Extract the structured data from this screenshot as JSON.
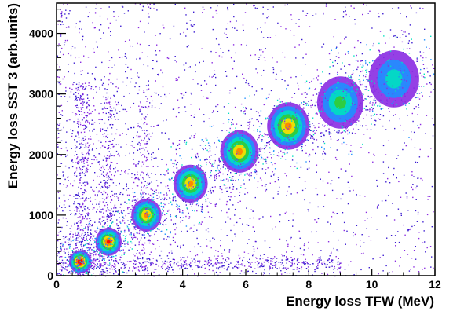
{
  "chart_data": {
    "type": "heatmap",
    "title": "",
    "xlabel": "Energy loss TFW (MeV)",
    "ylabel": "Energy loss SST 3 (arb.units)",
    "xlim": [
      0,
      12
    ],
    "ylim": [
      0,
      4500
    ],
    "x_ticks": [
      0,
      2,
      4,
      6,
      8,
      10,
      12
    ],
    "y_ticks": [
      0,
      1000,
      2000,
      3000,
      4000
    ],
    "colormap": [
      "#3b1bd1",
      "#8a2be2",
      "#1e90ff",
      "#00e0c0",
      "#33cc33",
      "#ffe000",
      "#ff8000",
      "#ff0000"
    ],
    "grid": false,
    "clusters": [
      {
        "x": 0.75,
        "y": 230,
        "peak": "high"
      },
      {
        "x": 1.65,
        "y": 560,
        "peak": "medium-high"
      },
      {
        "x": 2.85,
        "y": 1000,
        "peak": "medium"
      },
      {
        "x": 4.25,
        "y": 1520,
        "peak": "medium"
      },
      {
        "x": 5.8,
        "y": 2050,
        "peak": "medium"
      },
      {
        "x": 7.35,
        "y": 2470,
        "peak": "medium"
      },
      {
        "x": 9.0,
        "y": 2860,
        "peak": "low-medium"
      },
      {
        "x": 10.7,
        "y": 3250,
        "peak": "low"
      }
    ]
  }
}
